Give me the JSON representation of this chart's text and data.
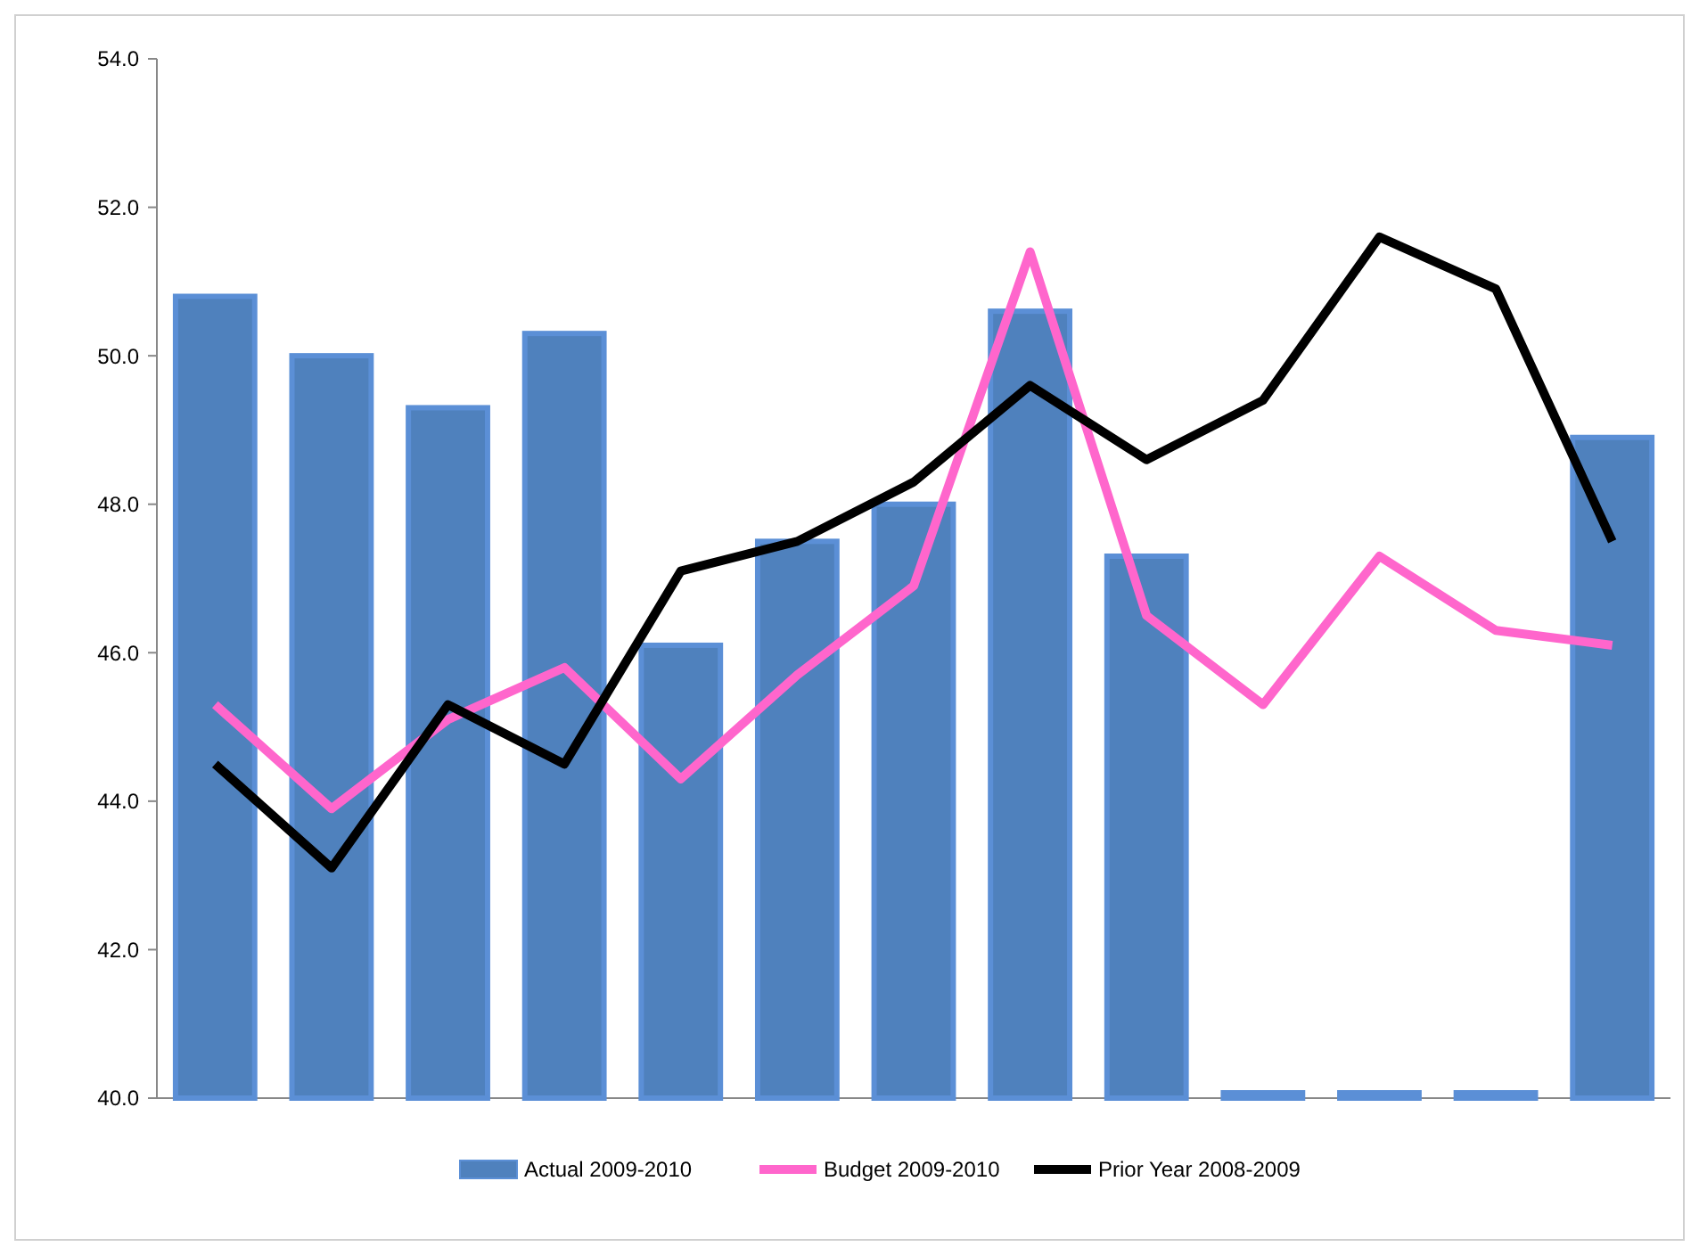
{
  "chart_data": {
    "type": "bar",
    "categories": [
      null,
      null,
      null,
      null,
      null,
      null,
      null,
      null,
      null,
      null,
      null,
      null,
      null
    ],
    "series": [
      {
        "name": "Actual 2009-2010",
        "color": "#4f81bd",
        "values": [
          50.8,
          50.0,
          49.3,
          50.3,
          46.1,
          47.5,
          48.0,
          50.6,
          47.3,
          40.0,
          40.0,
          40.0,
          48.9
        ]
      },
      {
        "name": "Budget 2009-2010",
        "type": "line",
        "color": "#ff66cc",
        "values": [
          45.3,
          43.9,
          45.1,
          45.8,
          44.3,
          45.7,
          46.9,
          51.4,
          46.5,
          45.3,
          47.3,
          46.3,
          46.1
        ]
      },
      {
        "name": "Prior Year 2008-2009",
        "type": "line",
        "color": "#000000",
        "values": [
          44.5,
          43.1,
          45.3,
          44.5,
          47.1,
          47.5,
          48.3,
          49.6,
          48.6,
          49.4,
          51.6,
          50.9,
          47.5
        ]
      }
    ],
    "ylim": [
      40,
      54
    ],
    "yticks": [
      {
        "value": 40,
        "label": "40.0"
      },
      {
        "value": 42,
        "label": "42.0"
      },
      {
        "value": 44,
        "label": "44.0"
      },
      {
        "value": 46,
        "label": "46.0"
      },
      {
        "value": 48,
        "label": "48.0"
      },
      {
        "value": 50,
        "label": "50.0"
      },
      {
        "value": 52,
        "label": "52.0"
      },
      {
        "value": 54,
        "label": "54.0"
      }
    ],
    "grid": false,
    "legend": "bottom",
    "line_style": "solid",
    "marker": "none"
  }
}
